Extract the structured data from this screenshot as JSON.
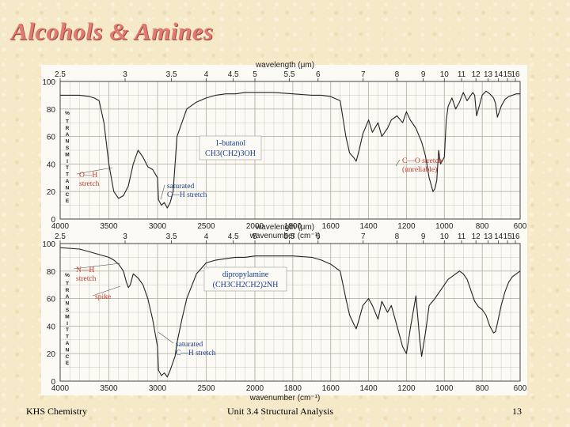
{
  "slide": {
    "title": "Alcohols & Amines",
    "footer_left": "KHS Chemistry",
    "footer_center": "Unit 3.4 Structural Analysis",
    "page_number": "13"
  },
  "colors": {
    "title": "#e07a72",
    "annotation": "#c0392b",
    "chart_background": "#fbfaf4",
    "grid": "#b9b3a4",
    "trace": "#222222"
  },
  "chart_data": [
    {
      "type": "line",
      "compound": "1-butanol",
      "formula": "CH3(CH2)3OH",
      "wavelength_axis_label": "wavelength (μm)",
      "wavelength_ticks": [
        "2.5",
        "3",
        "3.5",
        "4",
        "4.5",
        "5",
        "5.5",
        "6",
        "7",
        "8",
        "9",
        "10",
        "11",
        "12",
        "13",
        "14",
        "15",
        "16"
      ],
      "wavelength_values": [
        2.5,
        3,
        3.5,
        4,
        4.5,
        5,
        5.5,
        6,
        7,
        8,
        9,
        10,
        11,
        12,
        13,
        14,
        15,
        16
      ],
      "wavenumber_axis_label": "wavenumber (cm⁻¹)",
      "wavenumber_ticks": [
        "4000",
        "3500",
        "3000",
        "2500",
        "2000",
        "1800",
        "1600",
        "1400",
        "1200",
        "1000",
        "800",
        "600"
      ],
      "wavenumber_values": [
        4000,
        3500,
        3000,
        2500,
        2000,
        1800,
        1600,
        1400,
        1200,
        1000,
        800,
        600
      ],
      "y_axis_label": "% TRANSMITTANCE",
      "y_ticks": [
        "0",
        "20",
        "40",
        "60",
        "80",
        "100"
      ],
      "ylim": [
        0,
        100
      ],
      "grid": true,
      "annotations": [
        {
          "text": "O—H",
          "text2": "stretch"
        },
        {
          "text": "saturated",
          "text2": "C—H stretch"
        },
        {
          "text": "C—O stretch",
          "text2": "(unreliable)"
        }
      ],
      "series": [
        {
          "x": [
            4000,
            3800,
            3700,
            3650,
            3600,
            3550,
            3500,
            3450,
            3400,
            3350,
            3300,
            3250,
            3200,
            3150,
            3100,
            3050,
            3000,
            2990,
            2960,
            2930,
            2900,
            2870,
            2840,
            2800,
            2700,
            2600,
            2500,
            2400,
            2300,
            2200,
            2100,
            2000,
            1900,
            1800,
            1700,
            1650,
            1600,
            1550,
            1520,
            1500,
            1480,
            1465,
            1450,
            1430,
            1400,
            1380,
            1350,
            1330,
            1300,
            1280,
            1250,
            1220,
            1200,
            1180,
            1150,
            1120,
            1100,
            1080,
            1060,
            1050,
            1040,
            1030,
            1020,
            1000,
            990,
            980,
            960,
            940,
            920,
            900,
            880,
            860,
            850,
            840,
            830,
            800,
            780,
            760,
            740,
            730,
            720,
            700,
            680,
            660,
            640,
            620,
            600
          ],
          "y": [
            90,
            90,
            89,
            88,
            86,
            70,
            40,
            20,
            15,
            17,
            24,
            40,
            50,
            45,
            38,
            36,
            30,
            14,
            10,
            12,
            8,
            12,
            20,
            60,
            80,
            85,
            88,
            90,
            91,
            91,
            92,
            92,
            92,
            91,
            90,
            90,
            89,
            86,
            60,
            48,
            45,
            42,
            50,
            62,
            72,
            63,
            70,
            60,
            66,
            72,
            75,
            70,
            78,
            72,
            66,
            56,
            46,
            30,
            20,
            22,
            28,
            50,
            40,
            45,
            72,
            82,
            88,
            80,
            85,
            92,
            86,
            90,
            92,
            90,
            75,
            90,
            93,
            91,
            88,
            84,
            74,
            82,
            87,
            89,
            90,
            91,
            91
          ]
        }
      ]
    },
    {
      "type": "line",
      "compound": "dipropylamine",
      "formula": "(CH3CH2CH2)2NH",
      "wavelength_axis_label": "wavelength (μm)",
      "wavelength_ticks": [
        "2.5",
        "3",
        "3.5",
        "4",
        "4.5",
        "5",
        "5.5",
        "6",
        "7",
        "8",
        "9",
        "10",
        "11",
        "12",
        "13",
        "14",
        "15",
        "16"
      ],
      "wavelength_values": [
        2.5,
        3,
        3.5,
        4,
        4.5,
        5,
        5.5,
        6,
        7,
        8,
        9,
        10,
        11,
        12,
        13,
        14,
        15,
        16
      ],
      "wavenumber_axis_label": "wavenumber (cm⁻¹)",
      "wavenumber_ticks": [
        "4000",
        "3500",
        "3000",
        "2500",
        "2000",
        "1800",
        "1600",
        "1400",
        "1200",
        "1000",
        "800",
        "600"
      ],
      "wavenumber_values": [
        4000,
        3500,
        3000,
        2500,
        2000,
        1800,
        1600,
        1400,
        1200,
        1000,
        800,
        600
      ],
      "y_axis_label": "% TRANSMITTANCE",
      "y_ticks": [
        "0",
        "20",
        "40",
        "60",
        "80",
        "100"
      ],
      "ylim": [
        0,
        100
      ],
      "grid": true,
      "annotations": [
        {
          "text": "N—H",
          "text2": "stretch"
        },
        {
          "text": "spike"
        },
        {
          "text": "saturated",
          "text2": "C—H stretch"
        }
      ],
      "series": [
        {
          "x": [
            4000,
            3800,
            3700,
            3600,
            3500,
            3450,
            3400,
            3350,
            3320,
            3300,
            3280,
            3250,
            3200,
            3150,
            3100,
            3050,
            3000,
            2990,
            2960,
            2930,
            2900,
            2870,
            2840,
            2820,
            2800,
            2750,
            2700,
            2600,
            2500,
            2400,
            2300,
            2200,
            2100,
            2000,
            1900,
            1800,
            1700,
            1650,
            1600,
            1550,
            1520,
            1500,
            1480,
            1465,
            1450,
            1430,
            1400,
            1380,
            1350,
            1330,
            1300,
            1280,
            1250,
            1220,
            1200,
            1180,
            1150,
            1130,
            1120,
            1100,
            1080,
            1050,
            1020,
            1000,
            980,
            960,
            940,
            920,
            900,
            880,
            860,
            840,
            820,
            800,
            780,
            760,
            740,
            730,
            720,
            700,
            680,
            660,
            640,
            620,
            600
          ],
          "y": [
            97,
            96,
            94,
            92,
            90,
            88,
            85,
            80,
            72,
            68,
            70,
            78,
            75,
            70,
            60,
            45,
            25,
            8,
            4,
            6,
            3,
            8,
            14,
            18,
            28,
            45,
            60,
            78,
            86,
            88,
            89,
            90,
            90,
            91,
            91,
            91,
            90,
            88,
            85,
            80,
            60,
            48,
            42,
            38,
            45,
            55,
            60,
            55,
            45,
            58,
            50,
            55,
            40,
            25,
            20,
            38,
            62,
            30,
            18,
            35,
            55,
            60,
            66,
            70,
            74,
            76,
            78,
            80,
            78,
            74,
            66,
            58,
            54,
            52,
            48,
            40,
            35,
            36,
            42,
            55,
            65,
            72,
            76,
            78,
            80
          ]
        }
      ]
    }
  ]
}
